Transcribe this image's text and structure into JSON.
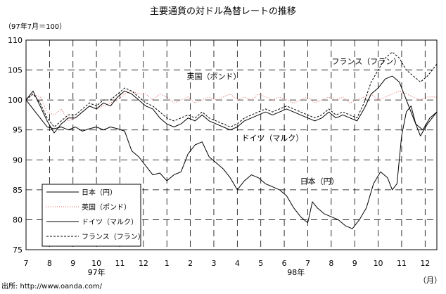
{
  "chart_data": {
    "type": "line",
    "title": "主要通貨の対ドル為替レートの推移",
    "subtitle": "（97年7月＝100）",
    "ylim": [
      75,
      110
    ],
    "yticks": [
      75,
      80,
      85,
      90,
      95,
      100,
      105,
      110
    ],
    "x_range": [
      0,
      17.5
    ],
    "x_ticks": [
      "7",
      "8",
      "9",
      "10",
      "11",
      "12",
      "1",
      "2",
      "3",
      "4",
      "5",
      "6",
      "7",
      "8",
      "9",
      "10",
      "11",
      "12"
    ],
    "year_labels": [
      {
        "text": "97年",
        "x": 3.0
      },
      {
        "text": "98年",
        "x": 11.5
      }
    ],
    "x_unit": "（月）",
    "grid": true,
    "legend_position": "bottom-left",
    "series": [
      {
        "name": "日本（円）",
        "color": "#000000",
        "style": "solid",
        "points": [
          [
            0,
            100
          ],
          [
            0.3,
            98.5
          ],
          [
            0.6,
            97
          ],
          [
            0.9,
            95.5
          ],
          [
            1.2,
            95.2
          ],
          [
            1.5,
            95.5
          ],
          [
            1.8,
            95
          ],
          [
            2.1,
            95.5
          ],
          [
            2.4,
            94.8
          ],
          [
            2.7,
            95.2
          ],
          [
            3.0,
            95.5
          ],
          [
            3.3,
            95
          ],
          [
            3.6,
            95.5
          ],
          [
            3.9,
            95.2
          ],
          [
            4.2,
            94.8
          ],
          [
            4.5,
            91.5
          ],
          [
            4.8,
            90.5
          ],
          [
            5.1,
            89
          ],
          [
            5.4,
            87.5
          ],
          [
            5.7,
            87.8
          ],
          [
            6.0,
            86.5
          ],
          [
            6.3,
            87.5
          ],
          [
            6.6,
            88
          ],
          [
            6.9,
            91
          ],
          [
            7.2,
            92.5
          ],
          [
            7.5,
            93
          ],
          [
            7.8,
            90.5
          ],
          [
            8.1,
            89.5
          ],
          [
            8.4,
            88.5
          ],
          [
            8.7,
            87
          ],
          [
            9.0,
            85
          ],
          [
            9.3,
            86.5
          ],
          [
            9.6,
            87.5
          ],
          [
            9.9,
            87
          ],
          [
            10.2,
            86
          ],
          [
            10.5,
            85.5
          ],
          [
            10.8,
            85
          ],
          [
            11.1,
            84
          ],
          [
            11.4,
            82
          ],
          [
            11.7,
            80.5
          ],
          [
            12.0,
            79.5
          ],
          [
            12.2,
            83
          ],
          [
            12.4,
            82
          ],
          [
            12.7,
            81
          ],
          [
            13.0,
            80.5
          ],
          [
            13.3,
            80
          ],
          [
            13.6,
            79
          ],
          [
            13.9,
            78.5
          ],
          [
            14.2,
            80
          ],
          [
            14.5,
            82
          ],
          [
            14.8,
            86
          ],
          [
            15.1,
            88
          ],
          [
            15.4,
            87
          ],
          [
            15.6,
            85
          ],
          [
            15.8,
            86
          ],
          [
            16.0,
            94
          ],
          [
            16.2,
            98
          ],
          [
            16.4,
            99
          ],
          [
            16.6,
            96
          ],
          [
            16.9,
            95
          ],
          [
            17.2,
            97
          ],
          [
            17.5,
            98
          ]
        ]
      },
      {
        "name": "英国（ポンド）",
        "color": "#e06060",
        "style": "dotted",
        "points": [
          [
            0,
            100
          ],
          [
            0.3,
            101
          ],
          [
            0.6,
            100.5
          ],
          [
            0.9,
            98
          ],
          [
            1.2,
            97.5
          ],
          [
            1.5,
            98.5
          ],
          [
            1.8,
            96.5
          ],
          [
            2.1,
            97
          ],
          [
            2.4,
            98
          ],
          [
            2.7,
            99
          ],
          [
            3.0,
            98.5
          ],
          [
            3.3,
            99
          ],
          [
            3.6,
            99.5
          ],
          [
            3.9,
            100
          ],
          [
            4.2,
            101
          ],
          [
            4.5,
            101.5
          ],
          [
            4.8,
            101
          ],
          [
            5.1,
            101
          ],
          [
            5.4,
            100
          ],
          [
            5.7,
            101
          ],
          [
            6.0,
            100.5
          ],
          [
            6.3,
            99.5
          ],
          [
            6.6,
            100
          ],
          [
            6.9,
            100.5
          ],
          [
            7.2,
            99.5
          ],
          [
            7.5,
            100
          ],
          [
            7.8,
            100.5
          ],
          [
            8.1,
            100
          ],
          [
            8.4,
            100.5
          ],
          [
            8.7,
            101
          ],
          [
            9.0,
            100
          ],
          [
            9.3,
            100.5
          ],
          [
            9.6,
            100
          ],
          [
            9.9,
            101
          ],
          [
            10.2,
            100.5
          ],
          [
            10.5,
            100
          ],
          [
            10.8,
            100.5
          ],
          [
            11.1,
            100
          ],
          [
            11.4,
            99.5
          ],
          [
            11.7,
            100
          ],
          [
            12.0,
            100.5
          ],
          [
            12.3,
            99.5
          ],
          [
            12.6,
            100
          ],
          [
            12.9,
            100.5
          ],
          [
            13.2,
            100
          ],
          [
            13.5,
            100.5
          ],
          [
            13.8,
            99.5
          ],
          [
            14.1,
            100
          ],
          [
            14.4,
            100.5
          ],
          [
            14.7,
            101
          ],
          [
            15.0,
            100
          ],
          [
            15.3,
            100.5
          ],
          [
            15.6,
            101
          ],
          [
            15.9,
            101.5
          ],
          [
            16.2,
            101
          ],
          [
            16.5,
            100.5
          ],
          [
            16.8,
            100
          ],
          [
            17.1,
            100.5
          ],
          [
            17.5,
            100.5
          ]
        ]
      },
      {
        "name": "ドイツ（マルク）",
        "color": "#000000",
        "style": "solid",
        "points": [
          [
            0,
            100
          ],
          [
            0.3,
            101.5
          ],
          [
            0.6,
            99
          ],
          [
            0.9,
            96.5
          ],
          [
            1.2,
            94.5
          ],
          [
            1.5,
            96
          ],
          [
            1.8,
            97
          ],
          [
            2.1,
            97
          ],
          [
            2.4,
            98
          ],
          [
            2.7,
            99
          ],
          [
            3.0,
            98.5
          ],
          [
            3.3,
            99.5
          ],
          [
            3.6,
            99
          ],
          [
            3.9,
            100.5
          ],
          [
            4.2,
            101.5
          ],
          [
            4.5,
            101
          ],
          [
            4.8,
            100
          ],
          [
            5.1,
            99
          ],
          [
            5.4,
            98.5
          ],
          [
            5.7,
            97
          ],
          [
            6.0,
            96
          ],
          [
            6.3,
            95.5
          ],
          [
            6.6,
            96
          ],
          [
            6.9,
            97
          ],
          [
            7.2,
            96.5
          ],
          [
            7.5,
            97.5
          ],
          [
            7.8,
            96.5
          ],
          [
            8.1,
            96
          ],
          [
            8.4,
            95.5
          ],
          [
            8.7,
            95
          ],
          [
            9.0,
            95.5
          ],
          [
            9.3,
            96.5
          ],
          [
            9.6,
            97
          ],
          [
            9.9,
            97.5
          ],
          [
            10.2,
            98
          ],
          [
            10.5,
            97.5
          ],
          [
            10.8,
            98
          ],
          [
            11.1,
            98.5
          ],
          [
            11.4,
            98
          ],
          [
            11.7,
            97.5
          ],
          [
            12.0,
            97
          ],
          [
            12.3,
            96.5
          ],
          [
            12.6,
            97
          ],
          [
            12.9,
            98
          ],
          [
            13.2,
            97
          ],
          [
            13.5,
            97.5
          ],
          [
            13.8,
            97
          ],
          [
            14.1,
            96.5
          ],
          [
            14.4,
            98.5
          ],
          [
            14.7,
            101
          ],
          [
            15.0,
            102
          ],
          [
            15.3,
            103.5
          ],
          [
            15.6,
            104
          ],
          [
            15.9,
            103
          ],
          [
            16.2,
            100
          ],
          [
            16.5,
            97
          ],
          [
            16.8,
            94
          ],
          [
            17.1,
            96
          ],
          [
            17.5,
            98
          ]
        ]
      },
      {
        "name": "フランス（フラン）",
        "color": "#000000",
        "style": "dashed",
        "points": [
          [
            0,
            100
          ],
          [
            0.3,
            101
          ],
          [
            0.6,
            99.5
          ],
          [
            0.9,
            97
          ],
          [
            1.2,
            95.5
          ],
          [
            1.5,
            96.5
          ],
          [
            1.8,
            97.5
          ],
          [
            2.1,
            97.5
          ],
          [
            2.4,
            98.5
          ],
          [
            2.7,
            99.5
          ],
          [
            3.0,
            99
          ],
          [
            3.3,
            100
          ],
          [
            3.6,
            100
          ],
          [
            3.9,
            101
          ],
          [
            4.2,
            102
          ],
          [
            4.5,
            101.5
          ],
          [
            4.8,
            100.5
          ],
          [
            5.1,
            99.5
          ],
          [
            5.4,
            99
          ],
          [
            5.7,
            98
          ],
          [
            6.0,
            97
          ],
          [
            6.3,
            96.5
          ],
          [
            6.6,
            97
          ],
          [
            6.9,
            97.5
          ],
          [
            7.2,
            97
          ],
          [
            7.5,
            98
          ],
          [
            7.8,
            97
          ],
          [
            8.1,
            96.5
          ],
          [
            8.4,
            96
          ],
          [
            8.7,
            95.5
          ],
          [
            9.0,
            96
          ],
          [
            9.3,
            97
          ],
          [
            9.6,
            97.5
          ],
          [
            9.9,
            98
          ],
          [
            10.2,
            98.5
          ],
          [
            10.5,
            98
          ],
          [
            10.8,
            98.5
          ],
          [
            11.1,
            99
          ],
          [
            11.4,
            98.5
          ],
          [
            11.7,
            98
          ],
          [
            12.0,
            97.5
          ],
          [
            12.3,
            97
          ],
          [
            12.6,
            97.5
          ],
          [
            12.9,
            98.5
          ],
          [
            13.2,
            97.5
          ],
          [
            13.5,
            98
          ],
          [
            13.8,
            97.5
          ],
          [
            14.1,
            97
          ],
          [
            14.4,
            99.5
          ],
          [
            14.7,
            103
          ],
          [
            15.0,
            105
          ],
          [
            15.3,
            107
          ],
          [
            15.6,
            108
          ],
          [
            15.9,
            107
          ],
          [
            16.2,
            105
          ],
          [
            16.5,
            104
          ],
          [
            16.8,
            103
          ],
          [
            17.1,
            104
          ],
          [
            17.5,
            106
          ]
        ]
      }
    ],
    "annotations": [
      {
        "text": "フランス（フラン）",
        "x": 14.5,
        "y": 106
      },
      {
        "text": "英国（ポンド）",
        "x": 8.0,
        "y": 103.5
      },
      {
        "text": "ドイツ（マルク）",
        "x": 10.5,
        "y": 93.2
      },
      {
        "text": "日本（円）",
        "x": 12.5,
        "y": 86
      }
    ],
    "source": "出所: http://www.oanda.com/"
  }
}
